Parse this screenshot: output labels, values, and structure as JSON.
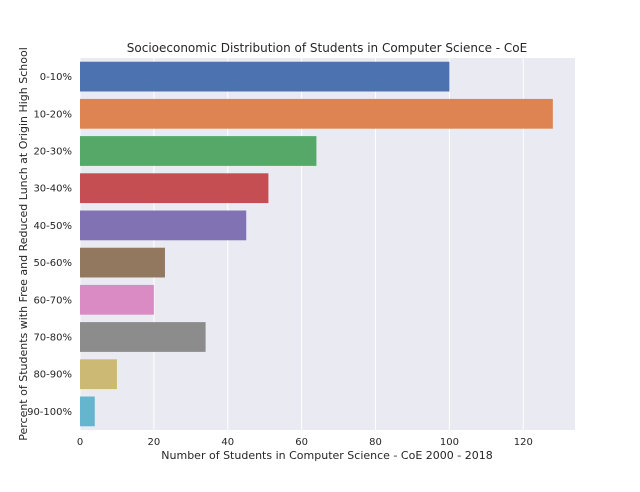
{
  "chart_data": {
    "type": "bar",
    "orientation": "horizontal",
    "title": "Socioeconomic Distribution of Students in Computer Science - CoE",
    "xlabel": "Number of Students in Computer Science - CoE 2000 - 2018",
    "ylabel": "Percent of Students with Free and Reduced Lunch at Origin High School",
    "categories": [
      "0-10%",
      "10-20%",
      "20-30%",
      "30-40%",
      "40-50%",
      "50-60%",
      "60-70%",
      "70-80%",
      "80-90%",
      "90-100%"
    ],
    "values": [
      100,
      128,
      64,
      51,
      45,
      23,
      20,
      34,
      10,
      4
    ],
    "colors": [
      "#4c72b0",
      "#dd8452",
      "#55a868",
      "#c44e52",
      "#8172b3",
      "#937860",
      "#da8bc3",
      "#8c8c8c",
      "#ccb974",
      "#64b5cd"
    ],
    "xlim": [
      0,
      134
    ],
    "xticks": [
      0,
      20,
      40,
      60,
      80,
      100,
      120
    ],
    "grid": true,
    "background": "#eaeaf2"
  }
}
